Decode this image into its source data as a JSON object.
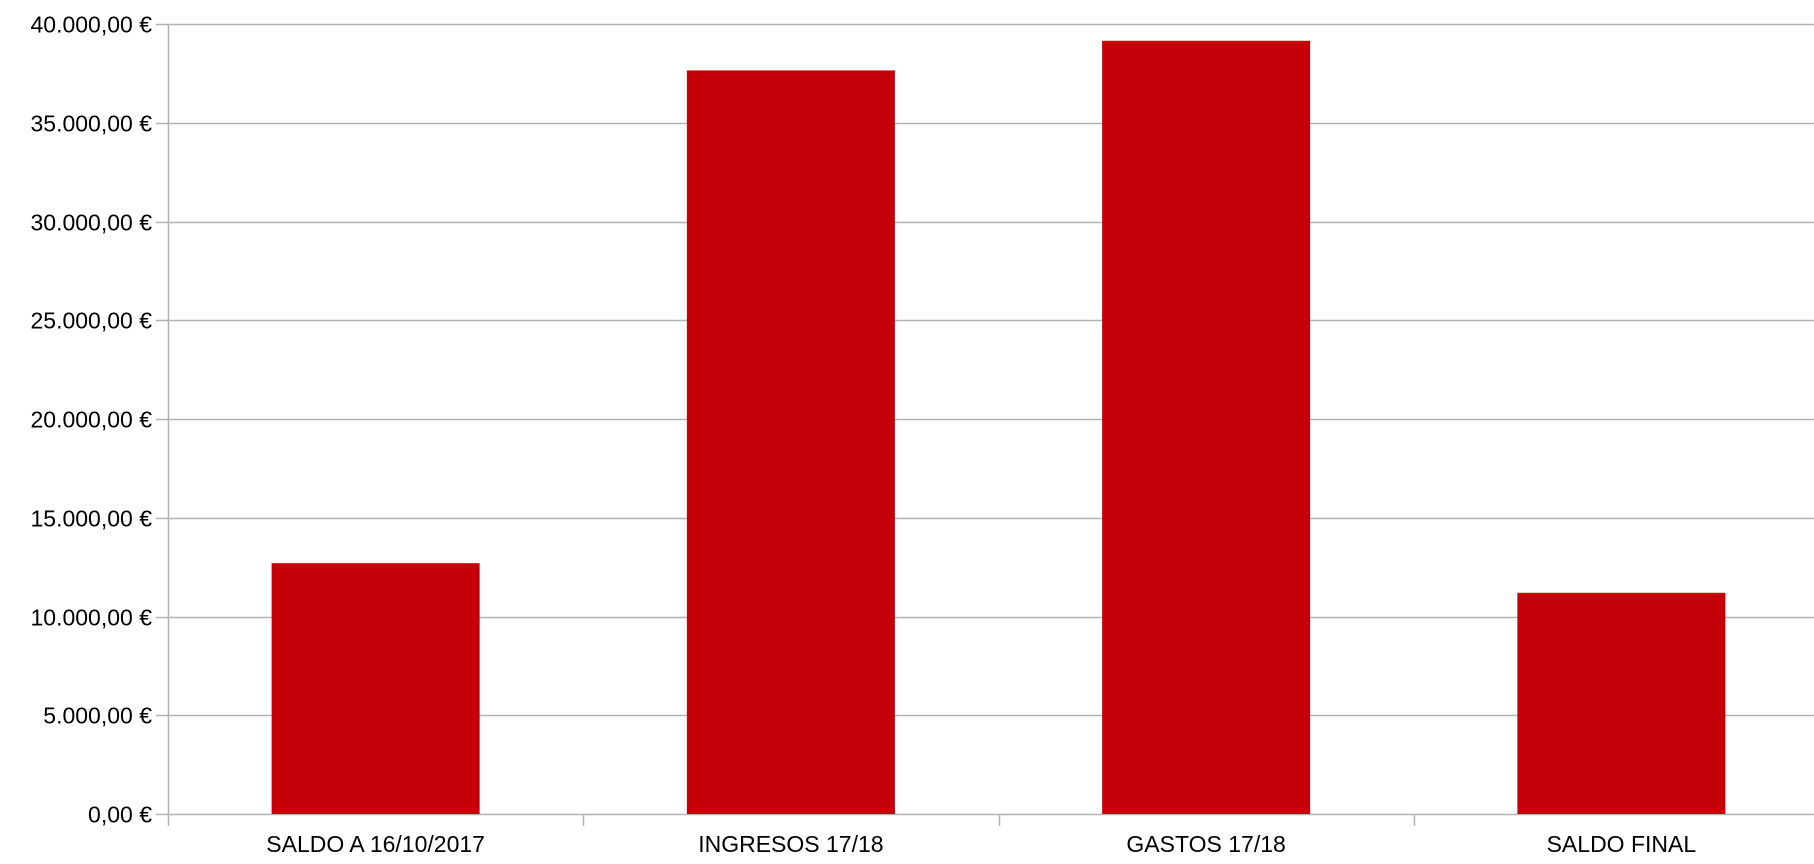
{
  "colors": {
    "bar": "#c4000b",
    "grid": "#b3b3b3",
    "axis": "#b3b3b3",
    "background": "#ffffff"
  },
  "chart_data": {
    "type": "bar",
    "title": "",
    "xlabel": "",
    "ylabel": "",
    "categories": [
      "SALDO A 16/10/2017",
      "INGRESOS 17/18",
      "GASTOS 17/18",
      "SALDO FINAL"
    ],
    "values": [
      12700,
      37650,
      39150,
      11200
    ],
    "ylim": [
      0,
      40000
    ],
    "y_ticks": [
      0,
      5000,
      10000,
      15000,
      20000,
      25000,
      30000,
      35000,
      40000
    ],
    "y_tick_labels": [
      "0,00 €",
      "5.000,00 €",
      "10.000,00 €",
      "15.000,00 €",
      "20.000,00 €",
      "25.000,00 €",
      "30.000,00 €",
      "35.000,00 €",
      "40.000,00 €"
    ],
    "grid": true,
    "legend": "none"
  }
}
